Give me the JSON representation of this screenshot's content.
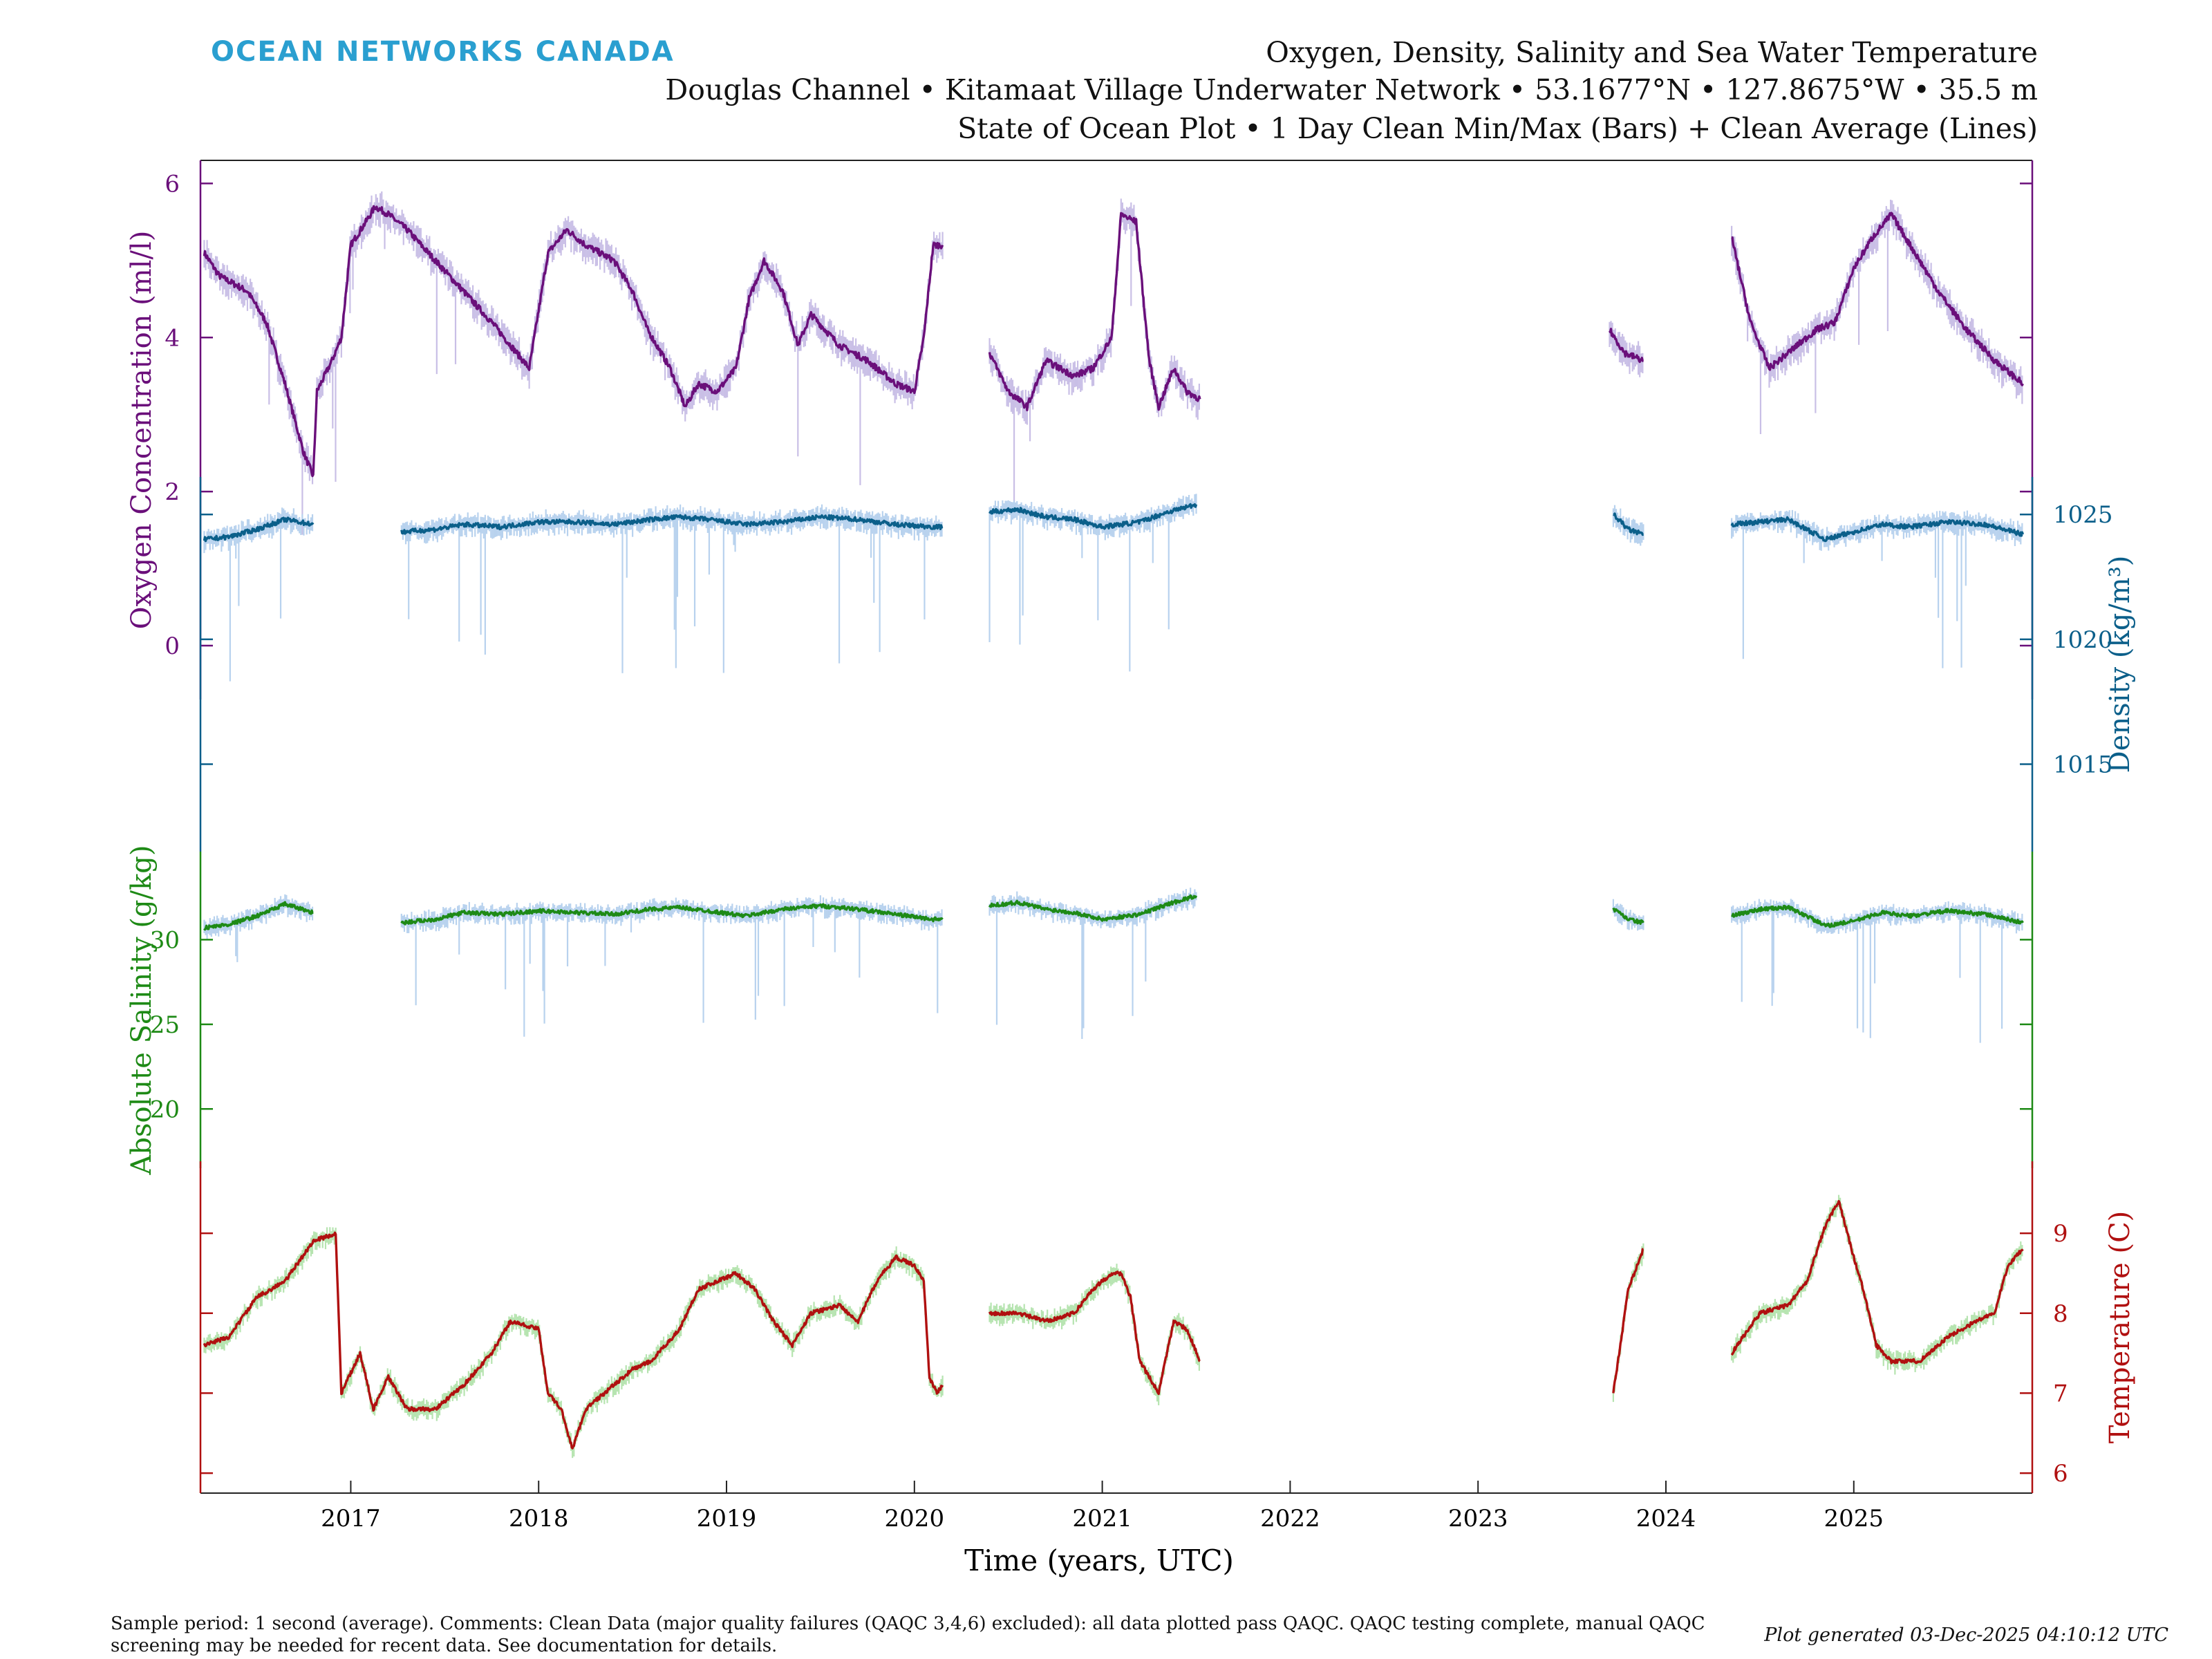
{
  "brand": "OCEAN NETWORKS CANADA",
  "titles": [
    "Oxygen, Density, Salinity and Sea Water Temperature",
    "Douglas Channel • Kitamaat Village Underwater Network • 53.1677°N • 127.8675°W • 35.5 m",
    "State of Ocean Plot • 1 Day Clean Min/Max (Bars) + Clean Average (Lines)"
  ],
  "footer": {
    "note": "Sample period: 1 second (average). Comments: Clean Data (major quality failures (QAQC 3,4,6) excluded): all data plotted pass QAQC. QAQC testing complete, manual QAQC screening may be needed for recent data. See documentation for details.",
    "generated": "Plot generated 03-Dec-2025 04:10:12 UTC"
  },
  "colors": {
    "oxygen": "#6a0f7a",
    "density": "#0b5f8a",
    "salinity": "#1e8a16",
    "temperature": "#b01010",
    "minmax_blue": "#b8d2ee",
    "minmax_purple": "#c9bfe6",
    "minmax_green": "#b6e4b0",
    "brand": "#2a9fd0"
  },
  "chart_data": {
    "type": "line",
    "xlabel": "Time (years, UTC)",
    "x_ticks": [
      "2017",
      "2018",
      "2019",
      "2020",
      "2021",
      "2022",
      "2023",
      "2024",
      "2025"
    ],
    "xlim": [
      2016.2,
      2025.95
    ],
    "series": [
      {
        "key": "oxygen",
        "label": "Oxygen Concentration (ml/l)",
        "axis": "left",
        "ylim": [
          -0.7,
          6.3
        ],
        "ticks": [
          "0",
          "2",
          "4",
          "6"
        ],
        "segments": [
          [
            [
              2016.22,
              5.1
            ],
            [
              2016.3,
              4.8
            ],
            [
              2016.45,
              4.6
            ],
            [
              2016.55,
              4.2
            ],
            [
              2016.65,
              3.4
            ],
            [
              2016.75,
              2.5
            ],
            [
              2016.8,
              2.2
            ],
            [
              2016.82,
              3.3
            ],
            [
              2016.9,
              3.7
            ],
            [
              2016.95,
              4.0
            ],
            [
              2017.0,
              5.2
            ],
            [
              2017.08,
              5.5
            ],
            [
              2017.13,
              5.7
            ],
            [
              2017.2,
              5.6
            ],
            [
              2017.3,
              5.4
            ],
            [
              2017.45,
              5.0
            ],
            [
              2017.6,
              4.6
            ],
            [
              2017.75,
              4.2
            ],
            [
              2017.85,
              3.9
            ],
            [
              2017.95,
              3.6
            ],
            [
              2018.05,
              5.1
            ],
            [
              2018.15,
              5.4
            ],
            [
              2018.25,
              5.2
            ],
            [
              2018.4,
              5.0
            ],
            [
              2018.5,
              4.6
            ],
            [
              2018.58,
              4.1
            ],
            [
              2018.7,
              3.6
            ],
            [
              2018.78,
              3.1
            ],
            [
              2018.85,
              3.4
            ],
            [
              2018.95,
              3.3
            ],
            [
              2019.05,
              3.6
            ],
            [
              2019.12,
              4.5
            ],
            [
              2019.2,
              5.0
            ],
            [
              2019.3,
              4.6
            ],
            [
              2019.38,
              3.9
            ],
            [
              2019.45,
              4.3
            ],
            [
              2019.6,
              3.9
            ],
            [
              2019.75,
              3.7
            ],
            [
              2019.9,
              3.4
            ],
            [
              2020.0,
              3.3
            ],
            [
              2020.05,
              4.0
            ],
            [
              2020.1,
              5.2
            ],
            [
              2020.15,
              5.2
            ]
          ],
          [
            [
              2020.4,
              3.8
            ],
            [
              2020.5,
              3.3
            ],
            [
              2020.6,
              3.1
            ],
            [
              2020.7,
              3.7
            ],
            [
              2020.85,
              3.5
            ],
            [
              2020.95,
              3.6
            ],
            [
              2021.05,
              4.0
            ],
            [
              2021.1,
              5.6
            ],
            [
              2021.18,
              5.5
            ],
            [
              2021.25,
              3.7
            ],
            [
              2021.3,
              3.1
            ],
            [
              2021.38,
              3.6
            ],
            [
              2021.45,
              3.3
            ],
            [
              2021.52,
              3.2
            ]
          ],
          [
            [
              2023.7,
              4.1
            ],
            [
              2023.78,
              3.8
            ],
            [
              2023.88,
              3.7
            ]
          ],
          [
            [
              2024.35,
              5.3
            ],
            [
              2024.45,
              4.2
            ],
            [
              2024.55,
              3.6
            ],
            [
              2024.7,
              3.9
            ],
            [
              2024.8,
              4.1
            ],
            [
              2024.9,
              4.2
            ],
            [
              2025.0,
              4.9
            ],
            [
              2025.1,
              5.3
            ],
            [
              2025.2,
              5.6
            ],
            [
              2025.35,
              5.0
            ],
            [
              2025.45,
              4.6
            ],
            [
              2025.6,
              4.1
            ],
            [
              2025.75,
              3.7
            ],
            [
              2025.9,
              3.4
            ]
          ]
        ]
      },
      {
        "key": "density",
        "label": "Density (kg/m³)",
        "axis": "right",
        "ylim": [
          1011.5,
          1026.5
        ],
        "ticks": [
          "1015",
          "1020",
          "1025"
        ],
        "segments": [
          [
            [
              2016.22,
              1024.0
            ],
            [
              2016.35,
              1024.1
            ],
            [
              2016.5,
              1024.4
            ],
            [
              2016.65,
              1024.8
            ],
            [
              2016.8,
              1024.6
            ]
          ],
          [
            [
              2017.27,
              1024.3
            ],
            [
              2017.45,
              1024.4
            ],
            [
              2017.6,
              1024.6
            ],
            [
              2017.8,
              1024.5
            ],
            [
              2018.0,
              1024.7
            ],
            [
              2018.2,
              1024.7
            ],
            [
              2018.4,
              1024.6
            ],
            [
              2018.6,
              1024.8
            ],
            [
              2018.75,
              1024.9
            ],
            [
              2018.9,
              1024.8
            ],
            [
              2019.1,
              1024.6
            ],
            [
              2019.3,
              1024.7
            ],
            [
              2019.5,
              1024.9
            ],
            [
              2019.7,
              1024.8
            ],
            [
              2019.9,
              1024.6
            ],
            [
              2020.1,
              1024.5
            ],
            [
              2020.15,
              1024.5
            ]
          ],
          [
            [
              2020.4,
              1025.1
            ],
            [
              2020.55,
              1025.2
            ],
            [
              2020.7,
              1024.9
            ],
            [
              2020.85,
              1024.8
            ],
            [
              2021.0,
              1024.5
            ],
            [
              2021.2,
              1024.7
            ],
            [
              2021.35,
              1025.1
            ],
            [
              2021.5,
              1025.4
            ]
          ],
          [
            [
              2023.72,
              1025.0
            ],
            [
              2023.8,
              1024.4
            ],
            [
              2023.88,
              1024.2
            ]
          ],
          [
            [
              2024.35,
              1024.6
            ],
            [
              2024.5,
              1024.7
            ],
            [
              2024.65,
              1024.8
            ],
            [
              2024.75,
              1024.4
            ],
            [
              2024.85,
              1024.0
            ],
            [
              2025.0,
              1024.3
            ],
            [
              2025.15,
              1024.6
            ],
            [
              2025.3,
              1024.5
            ],
            [
              2025.5,
              1024.7
            ],
            [
              2025.7,
              1024.6
            ],
            [
              2025.9,
              1024.2
            ]
          ]
        ]
      },
      {
        "key": "salinity",
        "label": "Absolute Salinity (g/kg)",
        "axis": "left",
        "ylim": [
          16.5,
          35.2
        ],
        "ticks": [
          "20",
          "25",
          "30"
        ],
        "segments": [
          [
            [
              2016.22,
              30.7
            ],
            [
              2016.35,
              30.9
            ],
            [
              2016.5,
              31.4
            ],
            [
              2016.65,
              32.1
            ],
            [
              2016.8,
              31.6
            ]
          ],
          [
            [
              2017.27,
              31.0
            ],
            [
              2017.45,
              31.2
            ],
            [
              2017.6,
              31.6
            ],
            [
              2017.8,
              31.5
            ],
            [
              2018.0,
              31.7
            ],
            [
              2018.2,
              31.6
            ],
            [
              2018.4,
              31.5
            ],
            [
              2018.6,
              31.8
            ],
            [
              2018.75,
              31.9
            ],
            [
              2018.9,
              31.7
            ],
            [
              2019.1,
              31.4
            ],
            [
              2019.3,
              31.8
            ],
            [
              2019.5,
              32.0
            ],
            [
              2019.7,
              31.8
            ],
            [
              2019.9,
              31.5
            ],
            [
              2020.1,
              31.2
            ],
            [
              2020.15,
              31.2
            ]
          ],
          [
            [
              2020.4,
              32.0
            ],
            [
              2020.55,
              32.2
            ],
            [
              2020.7,
              31.8
            ],
            [
              2020.85,
              31.6
            ],
            [
              2021.0,
              31.2
            ],
            [
              2021.2,
              31.5
            ],
            [
              2021.35,
              32.1
            ],
            [
              2021.5,
              32.6
            ]
          ],
          [
            [
              2023.72,
              31.8
            ],
            [
              2023.8,
              31.2
            ],
            [
              2023.88,
              31.0
            ]
          ],
          [
            [
              2024.35,
              31.4
            ],
            [
              2024.5,
              31.8
            ],
            [
              2024.65,
              31.9
            ],
            [
              2024.75,
              31.4
            ],
            [
              2024.85,
              30.8
            ],
            [
              2025.0,
              31.1
            ],
            [
              2025.15,
              31.6
            ],
            [
              2025.3,
              31.4
            ],
            [
              2025.5,
              31.7
            ],
            [
              2025.7,
              31.5
            ],
            [
              2025.9,
              31.0
            ]
          ]
        ]
      },
      {
        "key": "temperature",
        "label": "Temperature (C)",
        "axis": "right",
        "ylim": [
          5.75,
          9.9
        ],
        "ticks": [
          "6",
          "7",
          "8",
          "9"
        ],
        "segments": [
          [
            [
              2016.22,
              7.6
            ],
            [
              2016.35,
              7.7
            ],
            [
              2016.5,
              8.2
            ],
            [
              2016.65,
              8.4
            ],
            [
              2016.8,
              8.9
            ],
            [
              2016.92,
              9.0
            ],
            [
              2016.95,
              7.0
            ],
            [
              2017.05,
              7.5
            ],
            [
              2017.12,
              6.8
            ],
            [
              2017.2,
              7.2
            ],
            [
              2017.3,
              6.8
            ],
            [
              2017.45,
              6.8
            ],
            [
              2017.6,
              7.1
            ],
            [
              2017.75,
              7.5
            ],
            [
              2017.85,
              7.9
            ],
            [
              2018.0,
              7.8
            ],
            [
              2018.05,
              7.0
            ],
            [
              2018.12,
              6.8
            ],
            [
              2018.18,
              6.3
            ],
            [
              2018.25,
              6.8
            ],
            [
              2018.35,
              7.0
            ],
            [
              2018.5,
              7.3
            ],
            [
              2018.6,
              7.4
            ],
            [
              2018.75,
              7.8
            ],
            [
              2018.85,
              8.3
            ],
            [
              2018.95,
              8.4
            ],
            [
              2019.05,
              8.5
            ],
            [
              2019.15,
              8.3
            ],
            [
              2019.25,
              7.9
            ],
            [
              2019.35,
              7.6
            ],
            [
              2019.45,
              8.0
            ],
            [
              2019.6,
              8.1
            ],
            [
              2019.7,
              7.9
            ],
            [
              2019.8,
              8.4
            ],
            [
              2019.9,
              8.7
            ],
            [
              2020.0,
              8.6
            ],
            [
              2020.05,
              8.4
            ],
            [
              2020.08,
              7.2
            ],
            [
              2020.12,
              7.0
            ],
            [
              2020.15,
              7.1
            ]
          ],
          [
            [
              2020.4,
              8.0
            ],
            [
              2020.55,
              8.0
            ],
            [
              2020.7,
              7.9
            ],
            [
              2020.85,
              8.0
            ],
            [
              2020.95,
              8.3
            ],
            [
              2021.05,
              8.5
            ],
            [
              2021.1,
              8.5
            ],
            [
              2021.15,
              8.2
            ],
            [
              2021.2,
              7.4
            ],
            [
              2021.3,
              7.0
            ],
            [
              2021.38,
              7.9
            ],
            [
              2021.45,
              7.8
            ],
            [
              2021.52,
              7.4
            ]
          ],
          [
            [
              2023.72,
              7.0
            ],
            [
              2023.8,
              8.3
            ],
            [
              2023.88,
              8.8
            ]
          ],
          [
            [
              2024.35,
              7.5
            ],
            [
              2024.5,
              8.0
            ],
            [
              2024.65,
              8.1
            ],
            [
              2024.75,
              8.4
            ],
            [
              2024.85,
              9.1
            ],
            [
              2024.92,
              9.4
            ],
            [
              2025.0,
              8.7
            ],
            [
              2025.05,
              8.3
            ],
            [
              2025.12,
              7.6
            ],
            [
              2025.2,
              7.4
            ],
            [
              2025.35,
              7.4
            ],
            [
              2025.5,
              7.7
            ],
            [
              2025.65,
              7.9
            ],
            [
              2025.75,
              8.0
            ],
            [
              2025.82,
              8.6
            ],
            [
              2025.9,
              8.8
            ]
          ]
        ]
      }
    ]
  }
}
